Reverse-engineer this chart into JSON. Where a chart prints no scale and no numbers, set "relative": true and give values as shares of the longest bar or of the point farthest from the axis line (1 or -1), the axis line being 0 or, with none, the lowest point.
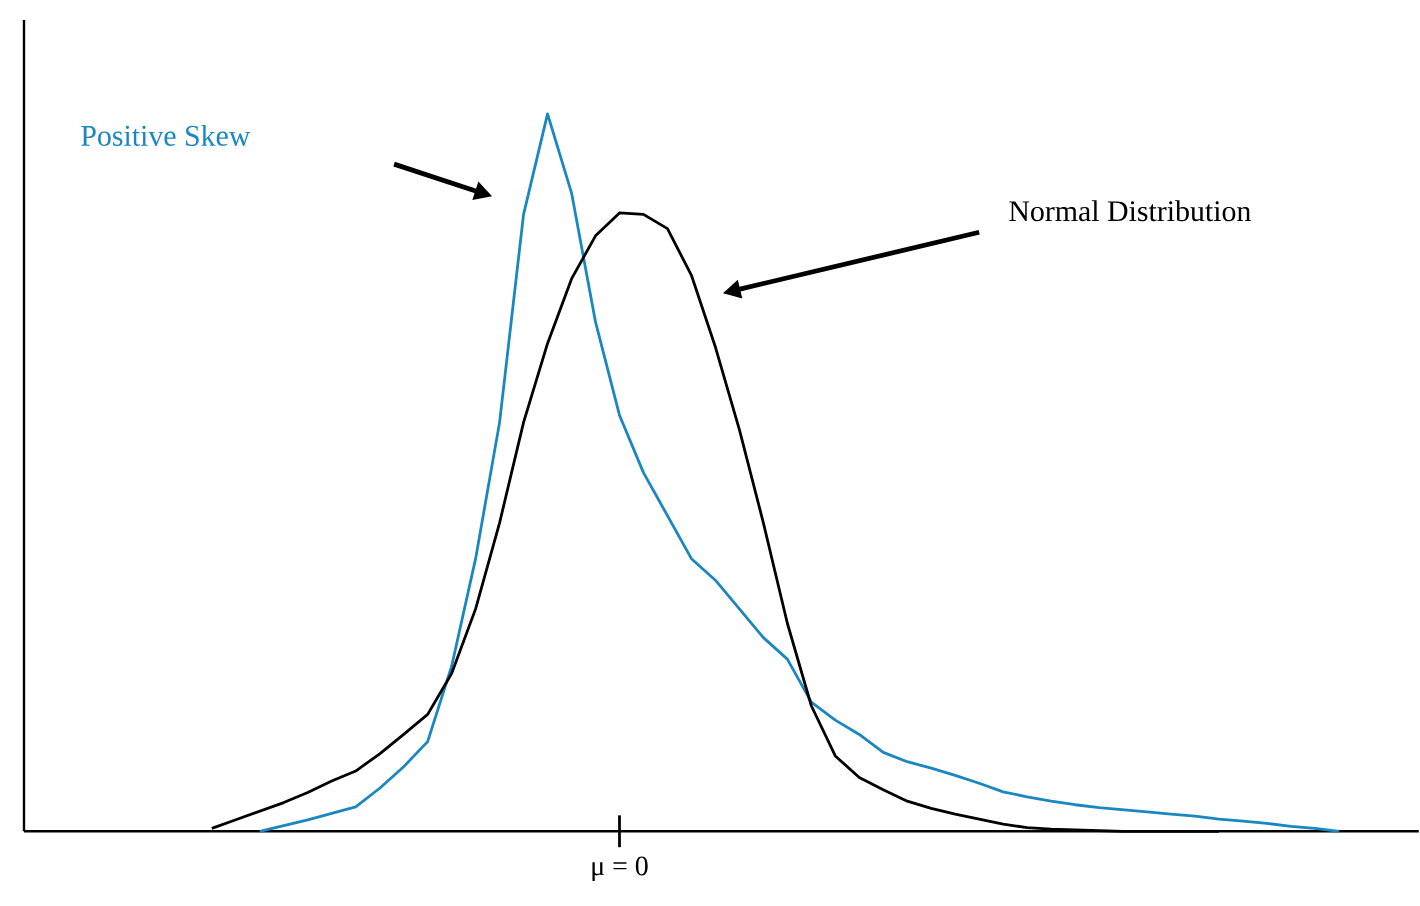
{
  "chart_data": {
    "type": "line",
    "relative": true,
    "annotations": [
      "μ = 0"
    ],
    "categories": [
      null,
      null,
      null,
      null,
      null,
      null,
      null,
      null,
      null,
      null,
      null,
      null,
      null,
      null,
      null,
      null,
      null,
      null,
      null,
      null,
      null,
      null,
      null,
      null,
      null,
      null,
      null,
      null,
      null,
      null,
      null,
      null,
      null,
      null,
      null,
      null,
      null,
      null,
      null,
      null,
      null,
      null,
      null,
      null,
      null,
      null,
      null,
      null,
      null
    ],
    "series": [
      {
        "name": "Positive Skew",
        "color": "#1a87c0",
        "values": [
          null,
          null,
          0,
          0.008,
          0.016,
          0.025,
          0.034,
          0.06,
          0.09,
          0.125,
          0.23,
          0.38,
          0.57,
          0.86,
          1,
          0.89,
          0.71,
          0.58,
          0.5,
          0.44,
          0.38,
          0.35,
          0.31,
          0.27,
          0.24,
          0.18,
          0.155,
          0.135,
          0.11,
          0.097,
          0.088,
          0.078,
          0.067,
          0.055,
          0.048,
          0.042,
          0.037,
          0.033,
          0.03,
          0.027,
          0.024,
          0.021,
          0.017,
          0.014,
          0.011,
          0.007,
          0.004,
          0,
          null
        ]
      },
      {
        "name": "Normal Distribution",
        "color": "#000000",
        "values": [
          0.004,
          0.016,
          0.028,
          0.04,
          0.054,
          0.07,
          0.084,
          0.108,
          0.135,
          0.163,
          0.22,
          0.31,
          0.43,
          0.57,
          0.68,
          0.77,
          0.83,
          0.862,
          0.86,
          0.84,
          0.775,
          0.675,
          0.56,
          0.43,
          0.29,
          0.175,
          0.105,
          0.075,
          0.058,
          0.042,
          0.032,
          0.024,
          0.017,
          0.01,
          0.005,
          0.003,
          0.002,
          0.001,
          0,
          0,
          0,
          0,
          0,
          null,
          null,
          null,
          null,
          null,
          null
        ]
      }
    ]
  }
}
